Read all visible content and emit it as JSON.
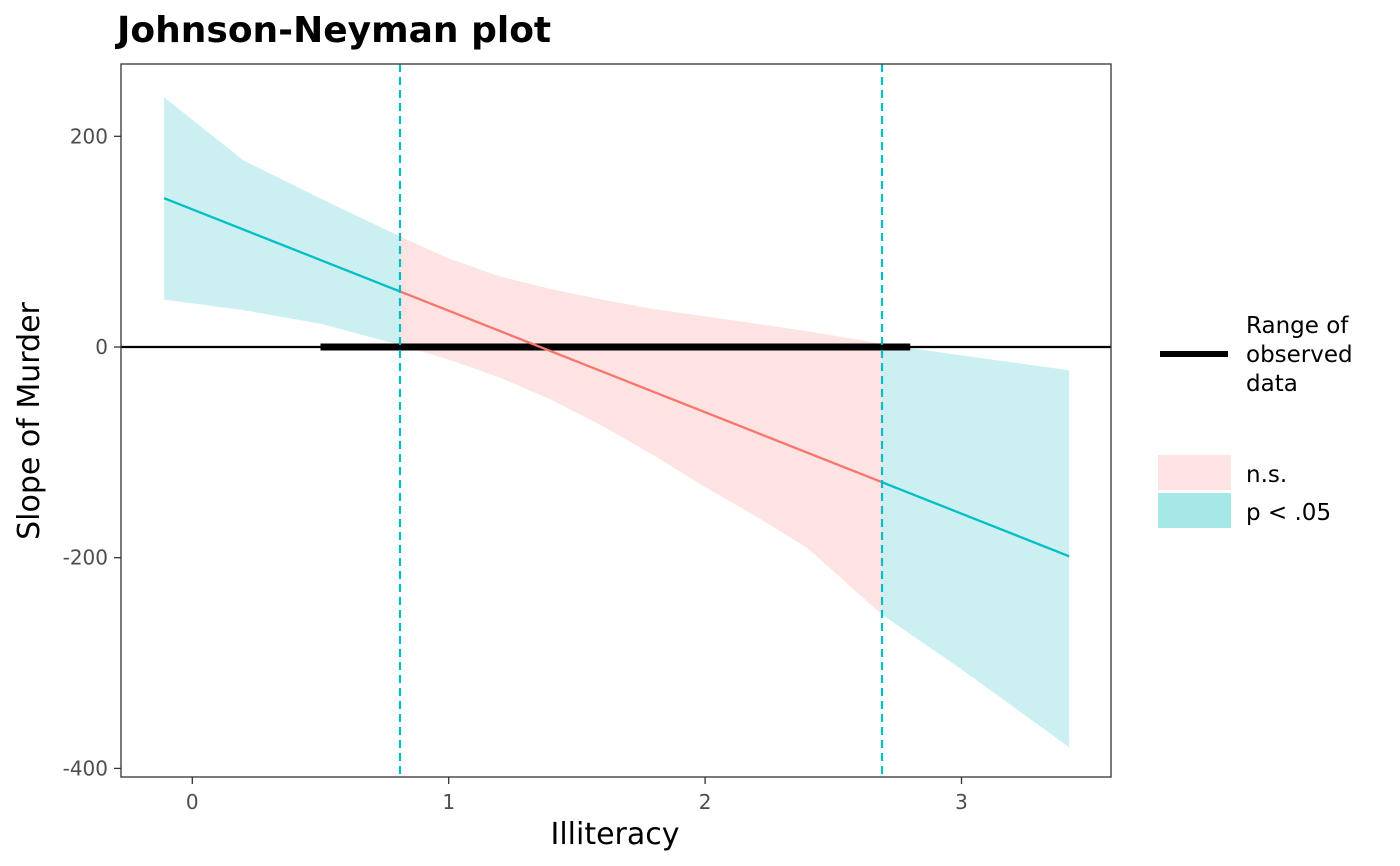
{
  "chart_data": {
    "type": "line",
    "title": "Johnson-Neyman plot",
    "xlabel": "Illiteracy",
    "ylabel": "Slope of Murder",
    "xlim": [
      -0.3,
      3.6
    ],
    "ylim": [
      -410,
      270
    ],
    "x_ticks": [
      0,
      1,
      2,
      3
    ],
    "y_ticks": [
      -400,
      -200,
      0,
      200
    ],
    "x_tick_labels": [
      "0",
      "1",
      "2",
      "3"
    ],
    "y_tick_labels": [
      "-400",
      "-200",
      "0",
      "200"
    ],
    "grid": false,
    "colors": {
      "significant": "#00BFC4",
      "not_significant": "#F8766D",
      "significant_fill": "#CCF0F2",
      "not_significant_fill": "#FDE3E2",
      "observed_range": "#000000"
    },
    "x_range": [
      -0.11,
      3.42
    ],
    "slope_line": {
      "intercept": 130.7,
      "slope": -96.3
    },
    "jn_thresholds": [
      0.81,
      2.69
    ],
    "observed_range": [
      0.5,
      2.8
    ],
    "band": {
      "x": [
        -0.11,
        0.2,
        0.5,
        0.81,
        1.0,
        1.2,
        1.4,
        1.6,
        1.8,
        2.0,
        2.2,
        2.4,
        2.69,
        3.0,
        3.42
      ],
      "upper": [
        237,
        177,
        141,
        105,
        84,
        67,
        55,
        45,
        36,
        29,
        22,
        15,
        3,
        -8,
        -22
      ],
      "lower": [
        45,
        35,
        22,
        2,
        -12,
        -29,
        -50,
        -75,
        -103,
        -133,
        -161,
        -191,
        -254,
        -306,
        -380
      ]
    },
    "legend": {
      "range_label": [
        "Range of",
        "observed",
        "data"
      ],
      "items": [
        {
          "label": "n.s.",
          "key": "not_significant_fill"
        },
        {
          "label": "p < .05",
          "key": "significant_fill"
        }
      ]
    }
  }
}
